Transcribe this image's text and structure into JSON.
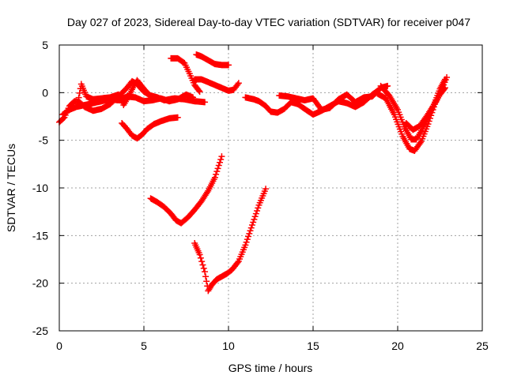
{
  "chart_data": {
    "type": "scatter",
    "title": "Day 027 of 2023, Sidereal Day-to-day VTEC variation (SDTVAR) for receiver p047",
    "xlabel": "GPS time / hours",
    "ylabel": "SDTVAR / TECUs",
    "xlim": [
      0,
      25
    ],
    "ylim": [
      -25,
      5
    ],
    "xticks": [
      0,
      5,
      10,
      15,
      20,
      25
    ],
    "yticks": [
      -25,
      -20,
      -15,
      -10,
      -5,
      0,
      5
    ],
    "grid": true,
    "marker": "plus",
    "color": "#ff0000",
    "series": [
      {
        "name": "seg1",
        "x": [
          0,
          0.3,
          0.6,
          0.9,
          1.2,
          1.5,
          2.0,
          2.5,
          3.0,
          3.5,
          4.0,
          4.3,
          4.6,
          5.0,
          5.4,
          5.8,
          6.2,
          6.8,
          7.4,
          8.0,
          8.6
        ],
        "y": [
          -3.1,
          -2.6,
          -1.4,
          -0.9,
          -1.0,
          -1.5,
          -1.9,
          -1.7,
          -1.2,
          -0.4,
          0.5,
          1.2,
          0.9,
          0.1,
          -0.3,
          -0.5,
          -0.8,
          -0.6,
          -0.7,
          -0.9,
          -1.0
        ]
      },
      {
        "name": "seg2",
        "x": [
          0.2,
          0.6,
          1.0,
          1.5,
          2.0,
          2.5,
          3.0,
          3.5,
          4.0,
          4.5,
          5.0,
          5.5,
          6.0,
          6.5,
          7.0,
          7.5,
          7.9
        ],
        "y": [
          -2.3,
          -1.8,
          -1.5,
          -1.3,
          -1.1,
          -0.9,
          -0.7,
          -0.8,
          -0.4,
          -0.5,
          -0.9,
          -0.8,
          -0.6,
          -0.9,
          -0.7,
          -0.2,
          -0.5
        ]
      },
      {
        "name": "seg3",
        "x": [
          1.1,
          1.3,
          1.6,
          2.0,
          2.5,
          3.0,
          3.5,
          3.8,
          4.1,
          4.4,
          4.6,
          5.0,
          5.4
        ],
        "y": [
          -1.0,
          0.9,
          -0.4,
          -0.7,
          -0.6,
          -0.5,
          -0.2,
          -1.3,
          -0.4,
          0.7,
          1.3,
          0.4,
          -0.4
        ]
      },
      {
        "name": "seg4",
        "x": [
          3.7,
          4.0,
          4.3,
          4.6,
          4.9,
          5.2,
          5.6,
          6.0,
          6.5,
          7.0
        ],
        "y": [
          -3.2,
          -3.8,
          -4.5,
          -4.8,
          -4.4,
          -3.8,
          -3.3,
          -3.0,
          -2.7,
          -2.6
        ]
      },
      {
        "name": "seg5",
        "x": [
          6.6,
          7.0,
          7.4,
          7.7,
          8.0,
          8.3
        ],
        "y": [
          3.6,
          3.6,
          3.1,
          2.0,
          0.8,
          0.1
        ]
      },
      {
        "name": "seg6",
        "x": [
          8.1,
          8.4,
          8.8,
          9.2,
          9.6,
          10.0
        ],
        "y": [
          4.0,
          3.8,
          3.4,
          3.0,
          2.9,
          2.9
        ]
      },
      {
        "name": "seg7",
        "x": [
          8.0,
          8.4,
          8.8,
          9.2,
          9.6,
          10.0,
          10.3,
          10.6
        ],
        "y": [
          1.4,
          1.4,
          1.1,
          0.8,
          0.5,
          0.2,
          0.3,
          1.0
        ]
      },
      {
        "name": "seg8",
        "x": [
          5.4,
          5.8,
          6.2,
          6.6,
          6.9,
          7.2,
          7.6,
          8.0,
          8.4,
          8.8,
          9.2,
          9.6
        ],
        "y": [
          -11.1,
          -11.5,
          -12.0,
          -12.7,
          -13.4,
          -13.7,
          -13.1,
          -12.3,
          -11.4,
          -10.3,
          -8.9,
          -6.7
        ]
      },
      {
        "name": "seg9",
        "x": [
          8.0,
          8.3,
          8.6,
          8.8,
          9.0,
          9.3,
          9.6,
          9.9,
          10.2,
          10.6,
          11.0,
          11.4,
          11.8,
          12.2
        ],
        "y": [
          -15.8,
          -17.0,
          -18.8,
          -20.8,
          -20.2,
          -19.6,
          -19.3,
          -19.0,
          -18.6,
          -17.7,
          -16.0,
          -13.9,
          -11.8,
          -10.1
        ]
      },
      {
        "name": "seg10",
        "x": [
          11.0,
          11.5,
          11.8,
          12.2,
          12.5,
          12.9,
          13.3,
          13.7,
          14.1,
          14.5,
          15.0,
          15.5,
          16.0,
          16.5,
          17.0,
          17.5,
          18.0,
          18.5,
          18.9
        ],
        "y": [
          -0.5,
          -0.7,
          -0.9,
          -1.4,
          -2.0,
          -2.1,
          -1.7,
          -1.0,
          -1.2,
          -1.7,
          -2.3,
          -1.9,
          -1.4,
          -0.9,
          -1.1,
          -1.5,
          -1.0,
          -0.2,
          0.3
        ]
      },
      {
        "name": "seg11",
        "x": [
          13.0,
          13.5,
          14.0,
          14.5,
          15.0,
          15.5,
          16.0,
          16.5,
          17.0,
          17.5,
          18.0,
          18.5,
          19.0,
          19.4
        ],
        "y": [
          -0.3,
          -0.4,
          -0.6,
          -0.8,
          -0.6,
          -1.8,
          -1.6,
          -0.7,
          -0.2,
          -1.0,
          -0.5,
          -0.4,
          0.5,
          0.7
        ]
      },
      {
        "name": "seg12",
        "x": [
          19.0,
          19.5,
          20.0,
          20.4,
          20.8,
          21.1,
          21.4,
          21.8,
          22.2,
          22.5,
          22.8
        ],
        "y": [
          0.7,
          -0.3,
          -1.8,
          -3.6,
          -4.9,
          -4.9,
          -4.0,
          -2.6,
          -1.0,
          0.4,
          1.4
        ]
      },
      {
        "name": "seg13",
        "x": [
          18.8,
          19.3,
          19.8,
          20.3,
          20.7,
          21.0,
          21.4,
          21.8,
          22.2,
          22.6,
          22.9
        ],
        "y": [
          -0.1,
          -0.6,
          -2.3,
          -4.6,
          -5.9,
          -6.1,
          -5.1,
          -3.3,
          -1.2,
          0.3,
          1.6
        ]
      },
      {
        "name": "seg14",
        "x": [
          20.5,
          20.9,
          21.3,
          21.7,
          22.1,
          22.5,
          22.8
        ],
        "y": [
          -3.2,
          -3.9,
          -3.5,
          -2.5,
          -1.4,
          -0.2,
          0.5
        ]
      }
    ]
  }
}
